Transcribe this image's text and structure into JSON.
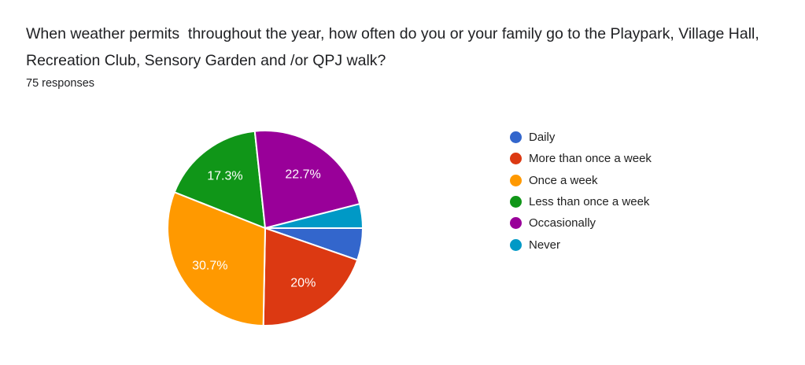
{
  "chart_data": {
    "type": "pie",
    "title": "When weather permits  throughout the year, how often do you or your family go to the Playpark, Village Hall, Recreation Club, Sensory Garden and /or QPJ walk?",
    "subtitle": "75 responses",
    "categories": [
      "Daily",
      "More than once a week",
      "Once a week",
      "Less than once a week",
      "Occasionally",
      "Never"
    ],
    "values": [
      5.3,
      20,
      30.7,
      17.3,
      22.7,
      4
    ],
    "slice_labels": [
      "",
      "20%",
      "30.7%",
      "17.3%",
      "22.7%",
      ""
    ],
    "colors": [
      "#3366cc",
      "#dc3912",
      "#ff9900",
      "#109618",
      "#990099",
      "#0099c6"
    ],
    "start_angle_deg": 90,
    "direction": "clockwise",
    "legend_position": "right",
    "slice_label_color": "#ffffff",
    "slice_border_color": "#ffffff",
    "background_color": "#ffffff",
    "title_color": "#202124"
  }
}
